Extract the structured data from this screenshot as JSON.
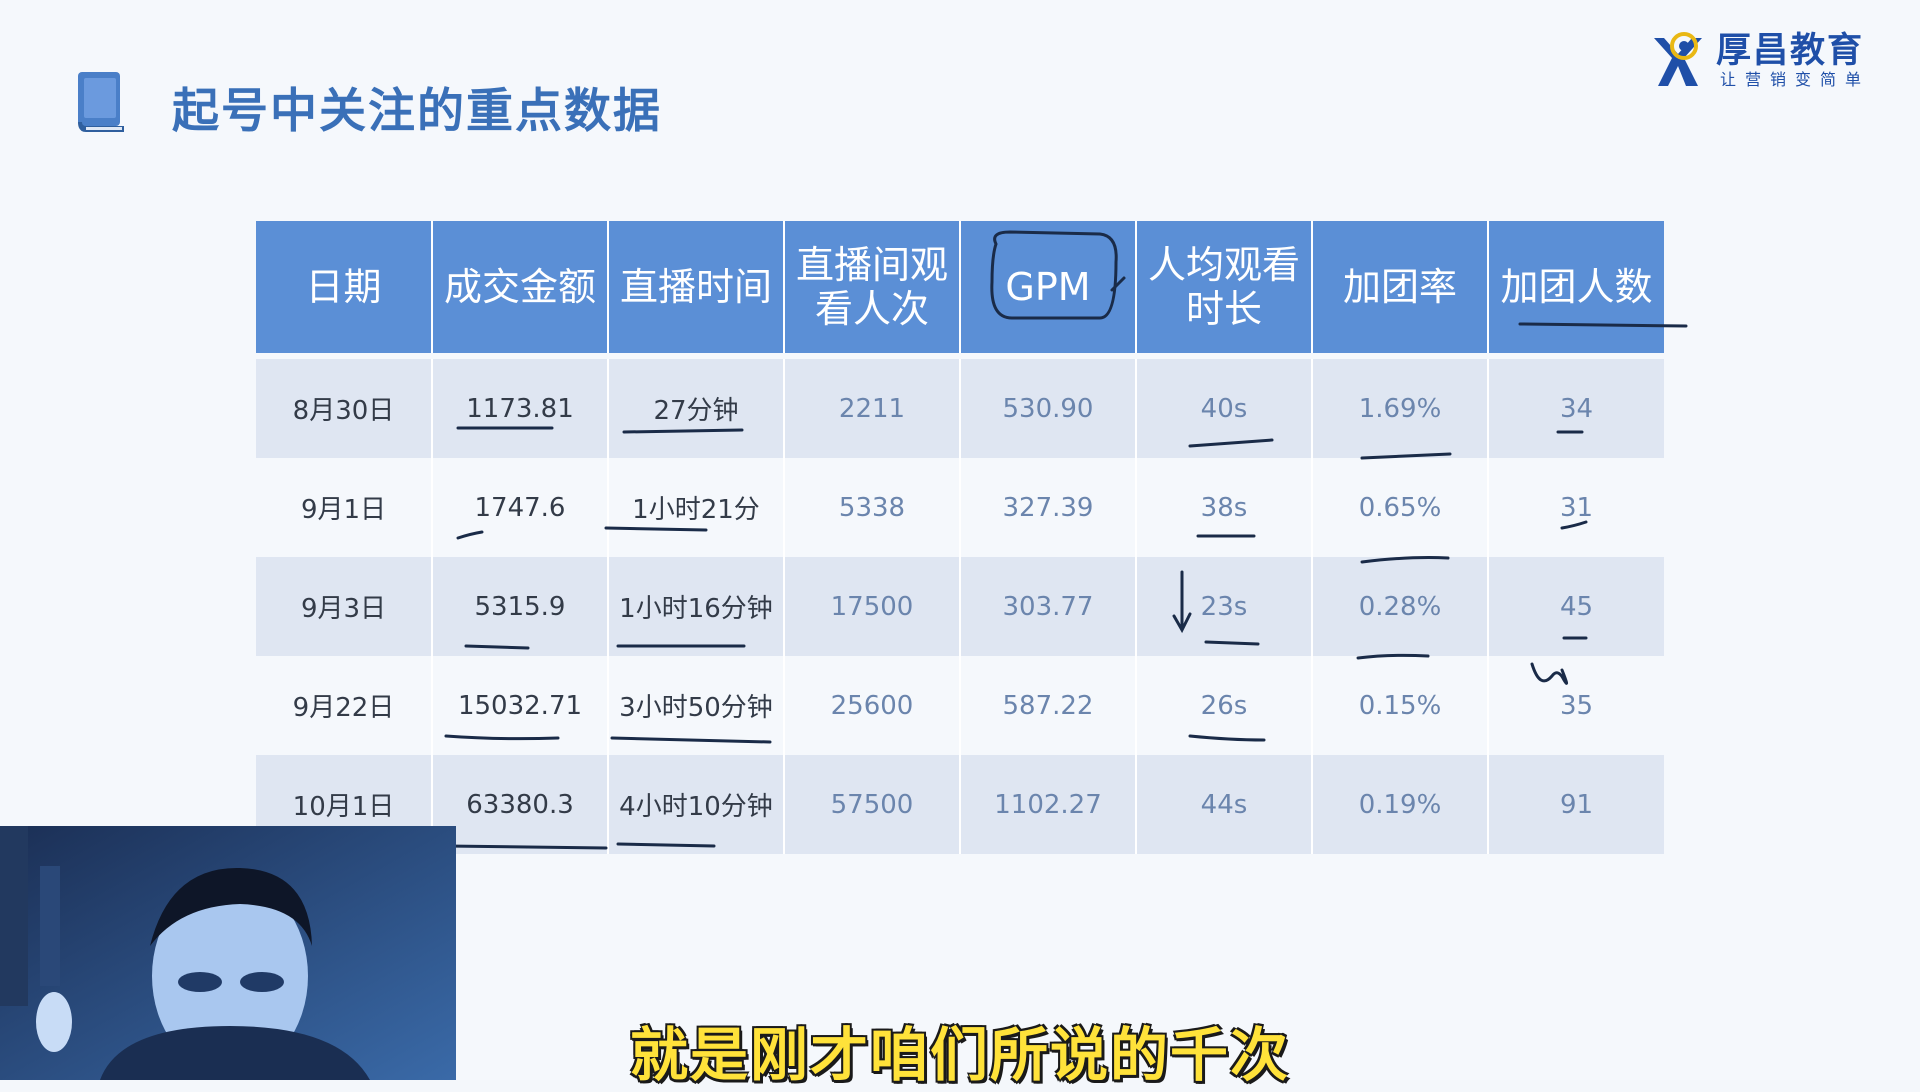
{
  "slide": {
    "title": "起号中关注的重点数据",
    "logo": {
      "name": "厚昌教育",
      "slogan": "让营销变简单"
    }
  },
  "table": {
    "headers": [
      "日期",
      "成交金额",
      "直播时间",
      "直播间观看人次",
      "GPM",
      "人均观看时长",
      "加团率",
      "加团人数"
    ],
    "rows": [
      [
        "8月30日",
        "1173.81",
        "27分钟",
        "2211",
        "530.90",
        "40s",
        "1.69%",
        "34"
      ],
      [
        "9月1日",
        "1747.6",
        "1小时21分",
        "5338",
        "327.39",
        "38s",
        "0.65%",
        "31"
      ],
      [
        "9月3日",
        "5315.9",
        "1小时16分钟",
        "17500",
        "303.77",
        "23s",
        "0.28%",
        "45"
      ],
      [
        "9月22日",
        "15032.71",
        "3小时50分钟",
        "25600",
        "587.22",
        "26s",
        "0.15%",
        "35"
      ],
      [
        "10月1日",
        "63380.3",
        "4小时10分钟",
        "57500",
        "1102.27",
        "44s",
        "0.19%",
        "91"
      ]
    ]
  },
  "subtitle": "就是刚才咱们所说的千次",
  "colors": {
    "accent": "#3a70b8",
    "header_bg": "#5b8fd6",
    "row_shade": "#dfe6f2",
    "ink": "#1a2b48",
    "subtitle": "#ffe23a"
  },
  "icons": [
    "book-icon",
    "logo-mark-icon"
  ]
}
